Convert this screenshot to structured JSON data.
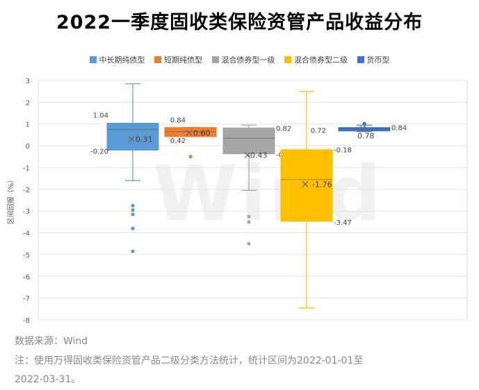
{
  "chart_data": {
    "type": "box",
    "title": "2022一季度固收类保险资管产品收益分布",
    "ylabel": "区间回报（%）",
    "ylim": [
      -8,
      3
    ],
    "yticks": [
      "3",
      "2",
      "1",
      "0",
      "-1",
      "-2",
      "-3",
      "-4",
      "-5",
      "-6",
      "-7",
      "-8"
    ],
    "grid": true,
    "legend_position": "top",
    "watermark": "Wind",
    "series": [
      {
        "name": "中长期纯债型",
        "color": "#5B9BD5",
        "whisker_low": -1.6,
        "q1": -0.2,
        "median": 0.75,
        "mean": 0.31,
        "q3": 1.04,
        "whisker_high": 2.85,
        "outliers": [
          -2.75,
          -2.95,
          -3.15,
          -3.8,
          -4.85
        ],
        "labels": {
          "q3": "1.04",
          "q1": "-0.20",
          "mean": "0.31"
        }
      },
      {
        "name": "短期纯债型",
        "color": "#ED7D31",
        "whisker_low": 0.42,
        "q1": 0.42,
        "median": 0.65,
        "mean": 0.6,
        "q3": 0.84,
        "whisker_high": 0.84,
        "outliers": [
          -0.5
        ],
        "labels": {
          "q3": "0.84",
          "q1": "0.42",
          "mean": "0.60"
        }
      },
      {
        "name": "混合债券型一级",
        "color": "#A5A5A5",
        "whisker_low": -2.05,
        "q1": -0.37,
        "median": 0.35,
        "mean": -0.43,
        "q3": 0.82,
        "whisker_high": 0.95,
        "outliers": [
          -3.25,
          -3.5,
          -4.5
        ],
        "labels": {
          "q3": "0.82",
          "q1": "-0.37",
          "mean": "-0.43"
        }
      },
      {
        "name": "混合债券型二级",
        "color": "#FFC000",
        "whisker_low": -7.45,
        "q1": -3.47,
        "median": -1.55,
        "mean": -1.76,
        "q3": -0.18,
        "whisker_high": 2.5,
        "outliers": [],
        "labels": {
          "q3": "-0.18",
          "q1": "-3.47",
          "mean": "-1.76"
        }
      },
      {
        "name": "货币型",
        "color": "#4472C4",
        "whisker_low": 0.65,
        "q1": 0.72,
        "median": 0.78,
        "mean": 0.78,
        "q3": 0.84,
        "whisker_high": 0.95,
        "outliers": [
          1.02
        ],
        "labels": {
          "q1": "0.72",
          "q3": "0.84",
          "mean": "0.78"
        }
      }
    ]
  },
  "footnotes": {
    "source": "数据来源：Wind",
    "note_line1": "注：使用万得固收类保险资管产品二级分类方法统计，统计区间为2022-01-01至",
    "note_line2": "2022-03-31。"
  }
}
